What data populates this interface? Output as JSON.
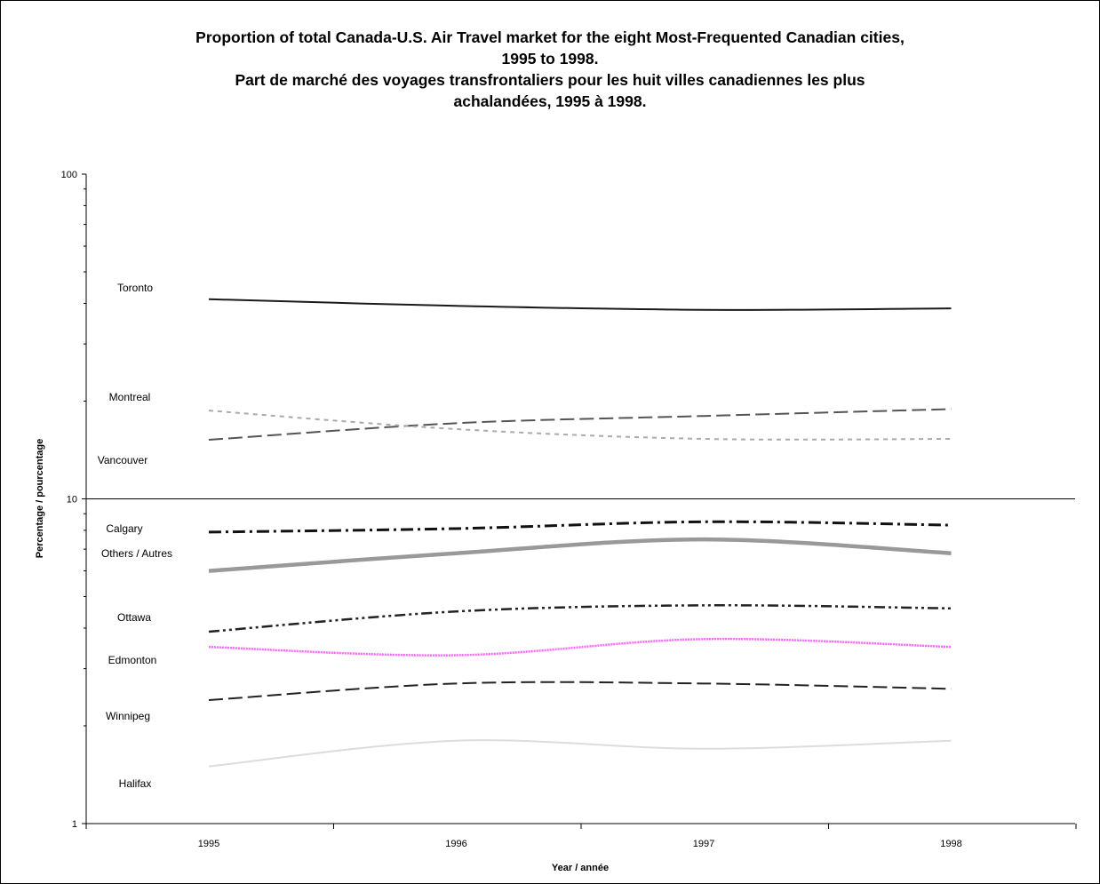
{
  "chart_data": {
    "type": "line",
    "title_lines": [
      "Proportion of total Canada-U.S. Air Travel market for the eight Most-Frequented Canadian cities,",
      "1995 to 1998.",
      "Part de marché des voyages transfrontaliers pour les huit villes canadiennes les plus",
      "achalandées, 1995 à 1998."
    ],
    "xlabel": "Year / année",
    "ylabel": "Percentage / pourcentage",
    "y_scale": "log",
    "ylim": [
      1,
      100
    ],
    "y_tick_labels": [
      "1",
      "10",
      "100"
    ],
    "categories": [
      "1995",
      "1996",
      "1997",
      "1998"
    ],
    "grid": "major gridline at 10 only",
    "series": [
      {
        "name": "Toronto",
        "values": [
          41.2,
          39.3,
          38.2,
          38.6
        ],
        "color": "#1a1a1a",
        "dash": "solid"
      },
      {
        "name": "Montreal",
        "values": [
          15.2,
          17.1,
          18.0,
          18.9
        ],
        "color": "#555555",
        "dash": "long-dash"
      },
      {
        "name": "Vancouver",
        "values": [
          18.7,
          16.4,
          15.3,
          15.3
        ],
        "color": "#aaaaaa",
        "dash": "short-dash"
      },
      {
        "name": "Calgary",
        "values": [
          7.9,
          8.1,
          8.5,
          8.3
        ],
        "color": "#111111",
        "dash": "dash-dot"
      },
      {
        "name": "Others / Autres",
        "values": [
          6.0,
          6.8,
          7.5,
          6.8
        ],
        "color": "#999999",
        "dash": "thick-solid"
      },
      {
        "name": "Ottawa",
        "values": [
          3.9,
          4.5,
          4.7,
          4.6
        ],
        "color": "#222222",
        "dash": "dash-dot-dot"
      },
      {
        "name": "Edmonton",
        "values": [
          3.5,
          3.3,
          3.7,
          3.5
        ],
        "color": "#ff66ff",
        "dash": "dotted"
      },
      {
        "name": "Winnipeg",
        "values": [
          2.4,
          2.7,
          2.7,
          2.6
        ],
        "color": "#222222",
        "dash": "long-dash"
      },
      {
        "name": "Halifax",
        "values": [
          1.5,
          1.8,
          1.7,
          1.8
        ],
        "color": "#dddddd",
        "dash": "solid"
      }
    ]
  }
}
